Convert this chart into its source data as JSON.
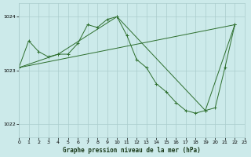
{
  "title": "Graphe pression niveau de la mer (hPa)",
  "bg_color": "#cceaea",
  "grid_color": "#aacccc",
  "line_color": "#2d6e2d",
  "xlim": [
    0,
    23
  ],
  "ylim": [
    1021.75,
    1024.25
  ],
  "yticks": [
    1022,
    1023,
    1024
  ],
  "xticks": [
    0,
    1,
    2,
    3,
    4,
    5,
    6,
    7,
    8,
    9,
    10,
    11,
    12,
    13,
    14,
    15,
    16,
    17,
    18,
    19,
    20,
    21,
    22,
    23
  ],
  "series1_x": [
    0,
    1,
    2,
    3,
    4,
    5,
    6,
    7,
    8,
    9,
    10,
    11,
    12,
    13,
    14,
    15,
    16,
    17,
    18,
    19,
    20,
    21,
    22
  ],
  "series1_y": [
    1023.05,
    1023.55,
    1023.35,
    1023.25,
    1023.3,
    1023.3,
    1023.5,
    1023.85,
    1023.8,
    1023.95,
    1024.0,
    1023.65,
    1023.2,
    1023.05,
    1022.75,
    1022.6,
    1022.4,
    1022.25,
    1022.2,
    1022.25,
    1022.3,
    1023.05,
    1023.85
  ],
  "series2_x": [
    0,
    4,
    10,
    19,
    22
  ],
  "series2_y": [
    1023.05,
    1023.3,
    1024.0,
    1022.25,
    1023.85
  ],
  "series3_x": [
    0,
    22
  ],
  "series3_y": [
    1023.05,
    1023.85
  ],
  "title_fontsize": 5.5,
  "tick_fontsize": 4.5
}
